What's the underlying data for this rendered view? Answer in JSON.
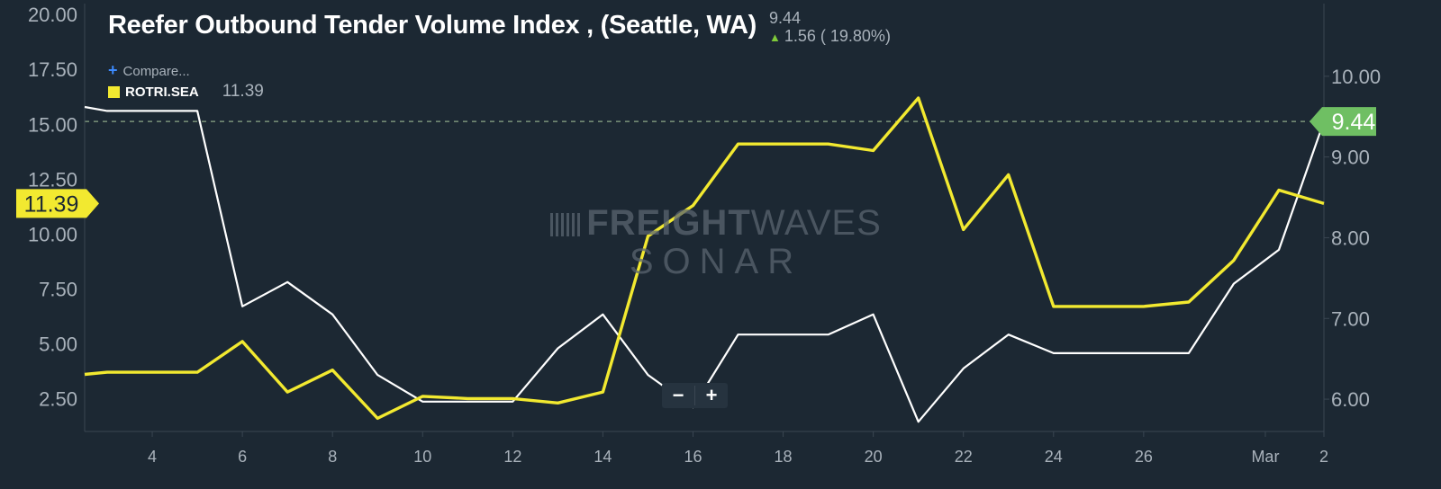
{
  "title": "Reefer Outbound Tender Volume Index , (Seattle, WA)",
  "header_value": "9.44",
  "header_change": "1.56 ( 19.80%)",
  "compare_label": "Compare...",
  "legend": {
    "name": "ROTRI.SEA",
    "value": "11.39"
  },
  "watermark": {
    "line1_bold": "FREIGHT",
    "line1_light": "WAVES",
    "line2": "SONAR"
  },
  "zoom": {
    "minus": "−",
    "plus": "+"
  },
  "colors": {
    "background": "#1c2833",
    "primary_series": "#ffffff",
    "compare_series": "#f2e930",
    "current_marker": "#6fbf63",
    "grid": "#3a4652"
  },
  "icons": {
    "change_direction": "arrow-up-icon",
    "compare": "plus-icon"
  },
  "chart_data": {
    "type": "line",
    "title": "Reefer Outbound Tender Volume Index , (Seattle, WA)",
    "x_ticks": [
      "4",
      "6",
      "8",
      "10",
      "12",
      "14",
      "16",
      "18",
      "20",
      "22",
      "24",
      "26",
      "Mar",
      "2"
    ],
    "x_tick_days": [
      4,
      6,
      8,
      10,
      12,
      14,
      16,
      18,
      20,
      22,
      24,
      26,
      28.7,
      30
    ],
    "left_axis": {
      "ticks": [
        "20.00",
        "17.50",
        "15.00",
        "12.50",
        "10.00",
        "7.50",
        "5.00",
        "2.50"
      ],
      "ylim": [
        1.0,
        20.5
      ]
    },
    "right_axis": {
      "ticks": [
        "10.00",
        "9.00",
        "8.00",
        "7.00",
        "6.00"
      ],
      "ylim": [
        5.6,
        10.9
      ]
    },
    "current_value_marker": {
      "axis": "right",
      "value": 9.44,
      "label": "9.44"
    },
    "left_value_marker": {
      "axis": "left",
      "value": 11.39,
      "label": "11.39"
    },
    "series": [
      {
        "axis": "right",
        "x": [
          2.5,
          3,
          4,
          5,
          6,
          7,
          8,
          9,
          10,
          11,
          12,
          13,
          14,
          15,
          16,
          17,
          18,
          19,
          20,
          21,
          22,
          23,
          24,
          25,
          26,
          27,
          28,
          29,
          30
        ],
        "values": [
          9.62,
          9.57,
          9.57,
          9.57,
          7.15,
          7.45,
          7.05,
          6.3,
          5.97,
          5.97,
          5.97,
          6.63,
          7.05,
          6.3,
          5.9,
          6.8,
          6.8,
          6.8,
          7.05,
          5.72,
          6.38,
          6.8,
          6.57,
          6.57,
          6.57,
          6.57,
          7.43,
          7.85,
          9.44
        ]
      },
      {
        "name": "ROTRI.SEA",
        "axis": "left",
        "x": [
          2.5,
          3,
          4,
          5,
          6,
          7,
          8,
          9,
          10,
          11,
          12,
          13,
          14,
          15,
          16,
          17,
          18,
          19,
          20,
          21,
          22,
          23,
          24,
          25,
          26,
          27,
          28,
          29,
          30
        ],
        "values": [
          3.6,
          3.7,
          3.7,
          3.7,
          5.1,
          2.8,
          3.8,
          1.6,
          2.6,
          2.5,
          2.5,
          2.3,
          2.8,
          9.9,
          11.3,
          14.1,
          14.1,
          14.1,
          13.8,
          16.2,
          10.2,
          12.7,
          6.7,
          6.7,
          6.7,
          6.9,
          8.8,
          12.0,
          11.39
        ]
      }
    ],
    "grid": true
  }
}
